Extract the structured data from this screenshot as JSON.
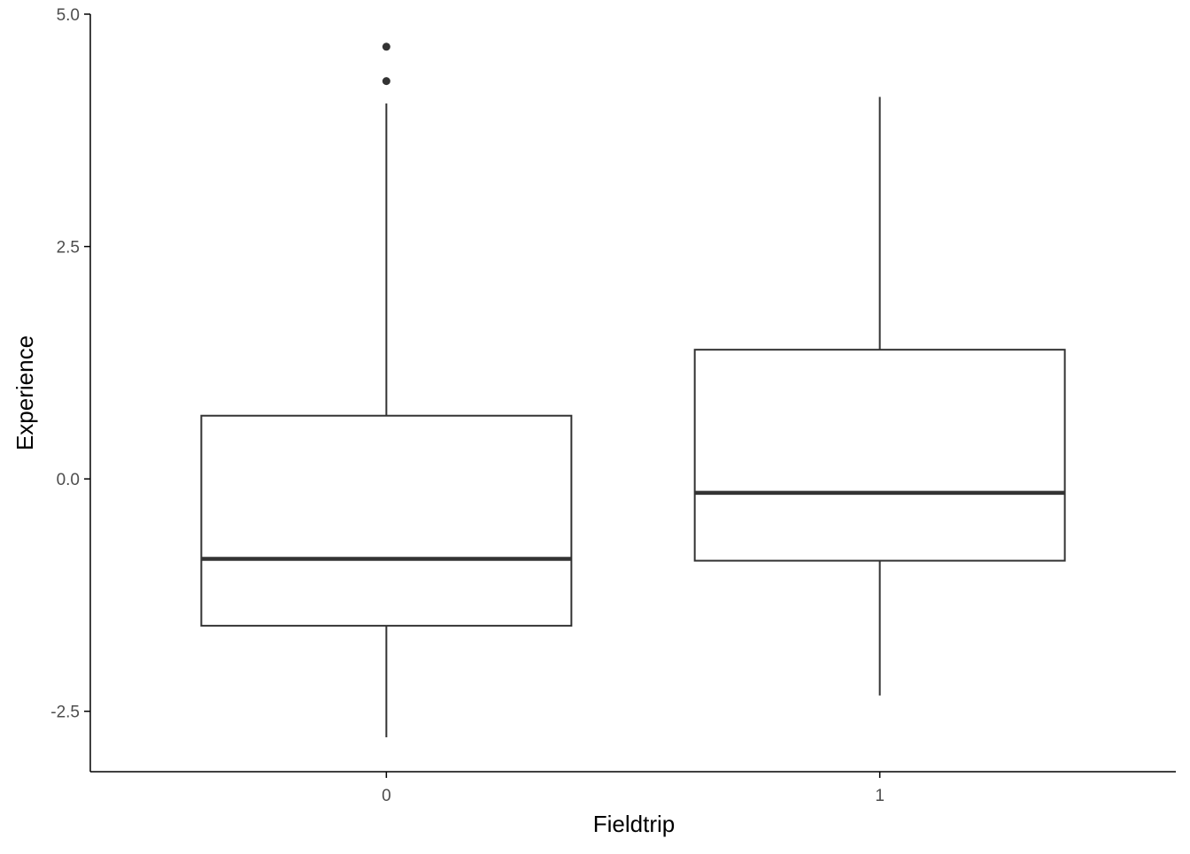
{
  "chart_data": {
    "type": "boxplot",
    "xlabel": "Fieldtrip",
    "ylabel": "Experience",
    "categories": [
      "0",
      "1"
    ],
    "ylim": [
      -3.15,
      5.0
    ],
    "yticks": [
      {
        "value": 5.0,
        "label": "5.0"
      },
      {
        "value": 2.5,
        "label": "2.5"
      },
      {
        "value": 0.0,
        "label": "0.0"
      },
      {
        "value": -2.5,
        "label": "-2.5"
      }
    ],
    "grid": false,
    "boxes": [
      {
        "category": "0",
        "whisker_low": -2.78,
        "q1": -1.58,
        "median": -0.86,
        "q3": 0.68,
        "whisker_high": 4.04,
        "outliers": [
          4.28,
          4.65
        ]
      },
      {
        "category": "1",
        "whisker_low": -2.33,
        "q1": -0.88,
        "median": -0.15,
        "q3": 1.39,
        "whisker_high": 4.11,
        "outliers": []
      }
    ],
    "colors": {
      "box_line": "#333333",
      "axis": "#000000",
      "tick_label": "#4d4d4d",
      "outlier": "#333333",
      "background": "#ffffff"
    }
  }
}
